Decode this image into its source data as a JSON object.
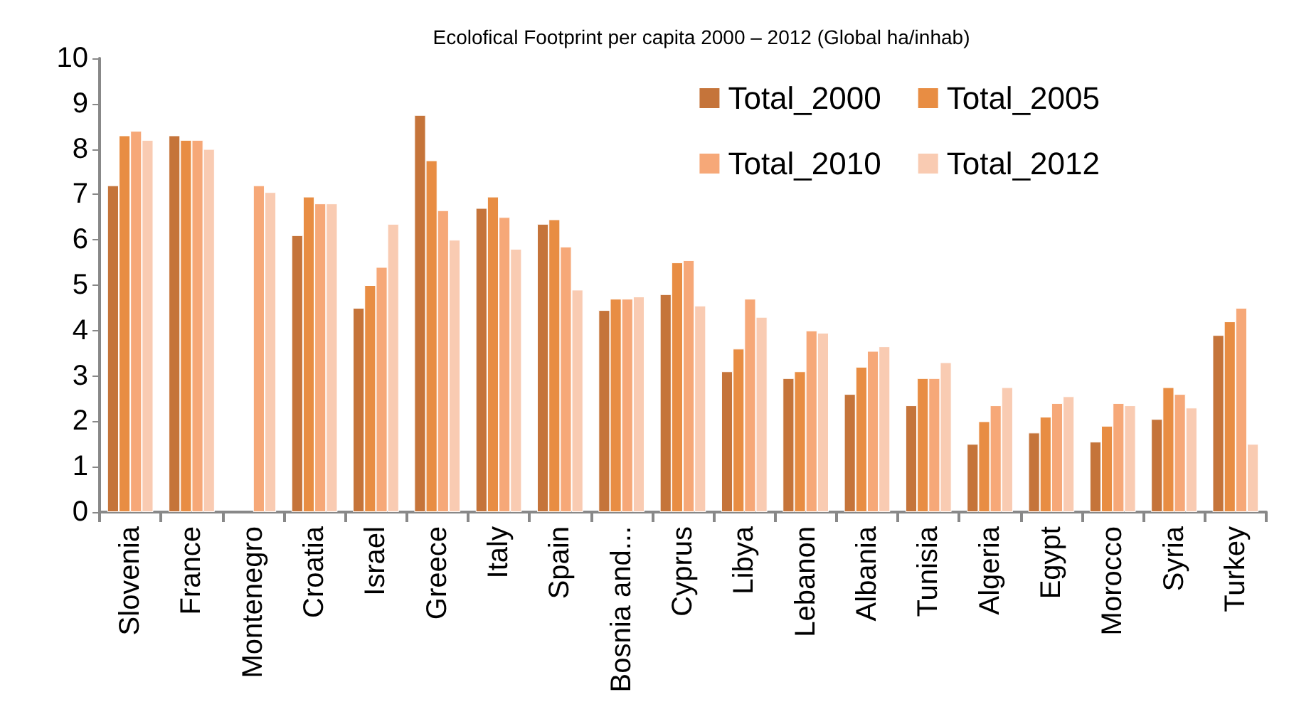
{
  "chart_data": {
    "type": "bar",
    "title": "Ecolofical Footprint per capita 2000 – 2012 (Global ha/inhab)",
    "categories": [
      "Slovenia",
      "France",
      "Montenegro",
      "Croatia",
      "Israel",
      "Greece",
      "Italy",
      "Spain",
      "Bosnia and...",
      "Cyprus",
      "Libya",
      "Lebanon",
      "Albania",
      "Tunisia",
      "Algeria",
      "Egypt",
      "Morocco",
      "Syria",
      "Turkey"
    ],
    "series": [
      {
        "name": "Total_2000",
        "color": "#c5743a",
        "values": [
          7.2,
          8.3,
          null,
          6.1,
          4.5,
          8.75,
          6.7,
          6.35,
          4.45,
          4.8,
          3.1,
          2.95,
          2.6,
          2.35,
          1.5,
          1.75,
          1.55,
          2.05,
          3.9
        ]
      },
      {
        "name": "Total_2005",
        "color": "#e88d43",
        "values": [
          8.3,
          8.2,
          null,
          6.95,
          5.0,
          7.75,
          6.95,
          6.45,
          4.7,
          5.5,
          3.6,
          3.1,
          3.2,
          2.95,
          2.0,
          2.1,
          1.9,
          2.75,
          4.2
        ]
      },
      {
        "name": "Total_2010",
        "color": "#f6a878",
        "values": [
          8.4,
          8.2,
          7.2,
          6.8,
          5.4,
          6.65,
          6.5,
          5.85,
          4.7,
          5.55,
          4.7,
          4.0,
          3.55,
          2.95,
          2.35,
          2.4,
          2.4,
          2.6,
          4.5
        ]
      },
      {
        "name": "Total_2012",
        "color": "#f9cbb2",
        "values": [
          8.2,
          8.0,
          7.05,
          6.8,
          6.35,
          6.0,
          5.8,
          4.9,
          4.75,
          4.55,
          4.3,
          3.95,
          3.65,
          3.3,
          2.75,
          2.55,
          2.35,
          2.3,
          1.5
        ]
      }
    ],
    "ylim": [
      0,
      10
    ],
    "yticks": [
      0,
      1,
      2,
      3,
      4,
      5,
      6,
      7,
      8,
      9,
      10
    ],
    "grid": false,
    "legend": "top right"
  }
}
